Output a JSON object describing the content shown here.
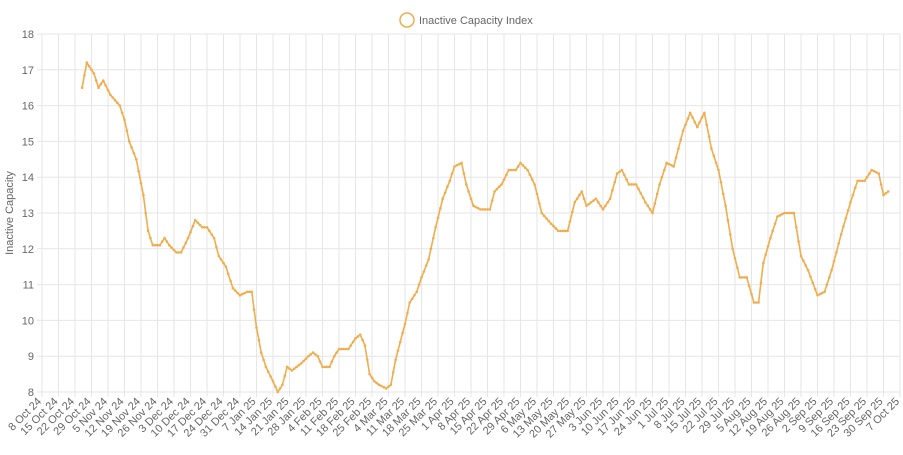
{
  "chart_data": {
    "type": "line",
    "title": "",
    "xlabel": "",
    "ylabel": "Inactive Capacity",
    "ylim": [
      8,
      18
    ],
    "y_ticks": [
      8,
      9,
      10,
      11,
      12,
      13,
      14,
      15,
      16,
      17,
      18
    ],
    "grid": true,
    "legend": "top-center",
    "colors": {
      "series": "#f0ad4e",
      "grid": "#e6e6e6",
      "text": "#666666"
    },
    "x_tick_labels": [
      "8 Oct 24",
      "15 Oct 24",
      "22 Oct 24",
      "29 Oct 24",
      "5 Nov 24",
      "12 Nov 24",
      "19 Nov 24",
      "26 Nov 24",
      "3 Dec 24",
      "10 Dec 24",
      "17 Dec 24",
      "24 Dec 24",
      "31 Dec 24",
      "7 Jan 25",
      "14 Jan 25",
      "21 Jan 25",
      "28 Jan 25",
      "4 Feb 25",
      "11 Feb 25",
      "18 Feb 25",
      "25 Feb 25",
      "4 Mar 25",
      "11 Mar 25",
      "18 Mar 25",
      "25 Mar 25",
      "1 Apr 25",
      "8 Apr 25",
      "15 Apr 25",
      "22 Apr 25",
      "29 Apr 25",
      "6 May 25",
      "13 May 25",
      "20 May 25",
      "27 May 25",
      "3 Jun 25",
      "10 Jun 25",
      "17 Jun 25",
      "24 Jun 25",
      "1 Jul 25",
      "8 Jul 25",
      "15 Jul 25",
      "22 Jul 25",
      "29 Jul 25",
      "5 Aug 25",
      "12 Aug 25",
      "19 Aug 25",
      "26 Aug 25",
      "2 Sep 25",
      "9 Sep 25",
      "16 Sep 25",
      "23 Sep 25",
      "30 Sep 25",
      "7 Oct 25"
    ],
    "series": [
      {
        "name": "Inactive Capacity Index",
        "points": [
          [
            "25 Oct 24",
            16.5
          ],
          [
            "27 Oct 24",
            17.2
          ],
          [
            "30 Oct 24",
            16.9
          ],
          [
            "1 Nov 24",
            16.5
          ],
          [
            "3 Nov 24",
            16.7
          ],
          [
            "6 Nov 24",
            16.3
          ],
          [
            "10 Nov 24",
            16.0
          ],
          [
            "12 Nov 24",
            15.6
          ],
          [
            "14 Nov 24",
            15.0
          ],
          [
            "17 Nov 24",
            14.5
          ],
          [
            "20 Nov 24",
            13.5
          ],
          [
            "22 Nov 24",
            12.5
          ],
          [
            "24 Nov 24",
            12.1
          ],
          [
            "27 Nov 24",
            12.1
          ],
          [
            "29 Nov 24",
            12.3
          ],
          [
            "1 Dec 24",
            12.1
          ],
          [
            "4 Dec 24",
            11.9
          ],
          [
            "6 Dec 24",
            11.9
          ],
          [
            "9 Dec 24",
            12.3
          ],
          [
            "12 Dec 24",
            12.8
          ],
          [
            "15 Dec 24",
            12.6
          ],
          [
            "17 Dec 24",
            12.6
          ],
          [
            "20 Dec 24",
            12.3
          ],
          [
            "22 Dec 24",
            11.8
          ],
          [
            "25 Dec 24",
            11.5
          ],
          [
            "28 Dec 24",
            10.9
          ],
          [
            "31 Dec 24",
            10.7
          ],
          [
            "3 Jan 25",
            10.8
          ],
          [
            "5 Jan 25",
            10.8
          ],
          [
            "7 Jan 25",
            9.8
          ],
          [
            "9 Jan 25",
            9.1
          ],
          [
            "11 Jan 25",
            8.7
          ],
          [
            "14 Jan 25",
            8.3
          ],
          [
            "16 Jan 25",
            8.0
          ],
          [
            "18 Jan 25",
            8.2
          ],
          [
            "20 Jan 25",
            8.7
          ],
          [
            "22 Jan 25",
            8.6
          ],
          [
            "26 Jan 25",
            8.8
          ],
          [
            "29 Jan 25",
            9.0
          ],
          [
            "31 Jan 25",
            9.1
          ],
          [
            "2 Feb 25",
            9.0
          ],
          [
            "4 Feb 25",
            8.7
          ],
          [
            "7 Feb 25",
            8.7
          ],
          [
            "9 Feb 25",
            9.0
          ],
          [
            "11 Feb 25",
            9.2
          ],
          [
            "15 Feb 25",
            9.2
          ],
          [
            "18 Feb 25",
            9.5
          ],
          [
            "20 Feb 25",
            9.6
          ],
          [
            "22 Feb 25",
            9.3
          ],
          [
            "24 Feb 25",
            8.5
          ],
          [
            "26 Feb 25",
            8.3
          ],
          [
            "28 Feb 25",
            8.2
          ],
          [
            "3 Mar 25",
            8.1
          ],
          [
            "5 Mar 25",
            8.2
          ],
          [
            "7 Mar 25",
            8.9
          ],
          [
            "9 Mar 25",
            9.4
          ],
          [
            "11 Mar 25",
            9.9
          ],
          [
            "13 Mar 25",
            10.5
          ],
          [
            "16 Mar 25",
            10.8
          ],
          [
            "18 Mar 25",
            11.2
          ],
          [
            "21 Mar 25",
            11.7
          ],
          [
            "24 Mar 25",
            12.6
          ],
          [
            "27 Mar 25",
            13.4
          ],
          [
            "30 Mar 25",
            13.9
          ],
          [
            "1 Apr 25",
            14.3
          ],
          [
            "4 Apr 25",
            14.4
          ],
          [
            "6 Apr 25",
            13.8
          ],
          [
            "9 Apr 25",
            13.2
          ],
          [
            "12 Apr 25",
            13.1
          ],
          [
            "16 Apr 25",
            13.1
          ],
          [
            "18 Apr 25",
            13.6
          ],
          [
            "21 Apr 25",
            13.8
          ],
          [
            "24 Apr 25",
            14.2
          ],
          [
            "27 Apr 25",
            14.2
          ],
          [
            "29 Apr 25",
            14.4
          ],
          [
            "2 May 25",
            14.2
          ],
          [
            "5 May 25",
            13.8
          ],
          [
            "8 May 25",
            13.0
          ],
          [
            "12 May 25",
            12.7
          ],
          [
            "15 May 25",
            12.5
          ],
          [
            "19 May 25",
            12.5
          ],
          [
            "22 May 25",
            13.3
          ],
          [
            "25 May 25",
            13.6
          ],
          [
            "27 May 25",
            13.2
          ],
          [
            "31 May 25",
            13.4
          ],
          [
            "3 Jun 25",
            13.1
          ],
          [
            "6 Jun 25",
            13.4
          ],
          [
            "9 Jun 25",
            14.1
          ],
          [
            "11 Jun 25",
            14.2
          ],
          [
            "14 Jun 25",
            13.8
          ],
          [
            "17 Jun 25",
            13.8
          ],
          [
            "21 Jun 25",
            13.3
          ],
          [
            "24 Jun 25",
            13.0
          ],
          [
            "27 Jun 25",
            13.8
          ],
          [
            "30 Jun 25",
            14.4
          ],
          [
            "3 Jul 25",
            14.3
          ],
          [
            "7 Jul 25",
            15.3
          ],
          [
            "10 Jul 25",
            15.8
          ],
          [
            "13 Jul 25",
            15.4
          ],
          [
            "16 Jul 25",
            15.8
          ],
          [
            "19 Jul 25",
            14.8
          ],
          [
            "22 Jul 25",
            14.2
          ],
          [
            "25 Jul 25",
            13.2
          ],
          [
            "28 Jul 25",
            12.0
          ],
          [
            "31 Jul 25",
            11.2
          ],
          [
            "3 Aug 25",
            11.2
          ],
          [
            "6 Aug 25",
            10.5
          ],
          [
            "8 Aug 25",
            10.5
          ],
          [
            "10 Aug 25",
            11.6
          ],
          [
            "13 Aug 25",
            12.3
          ],
          [
            "16 Aug 25",
            12.9
          ],
          [
            "19 Aug 25",
            13.0
          ],
          [
            "23 Aug 25",
            13.0
          ],
          [
            "26 Aug 25",
            11.8
          ],
          [
            "29 Aug 25",
            11.4
          ],
          [
            "2 Sep 25",
            10.7
          ],
          [
            "5 Sep 25",
            10.8
          ],
          [
            "8 Sep 25",
            11.4
          ],
          [
            "12 Sep 25",
            12.4
          ],
          [
            "16 Sep 25",
            13.3
          ],
          [
            "19 Sep 25",
            13.9
          ],
          [
            "22 Sep 25",
            13.9
          ],
          [
            "25 Sep 25",
            14.2
          ],
          [
            "28 Sep 25",
            14.1
          ],
          [
            "30 Sep 25",
            13.5
          ],
          [
            "2 Oct 25",
            13.6
          ]
        ]
      }
    ]
  }
}
